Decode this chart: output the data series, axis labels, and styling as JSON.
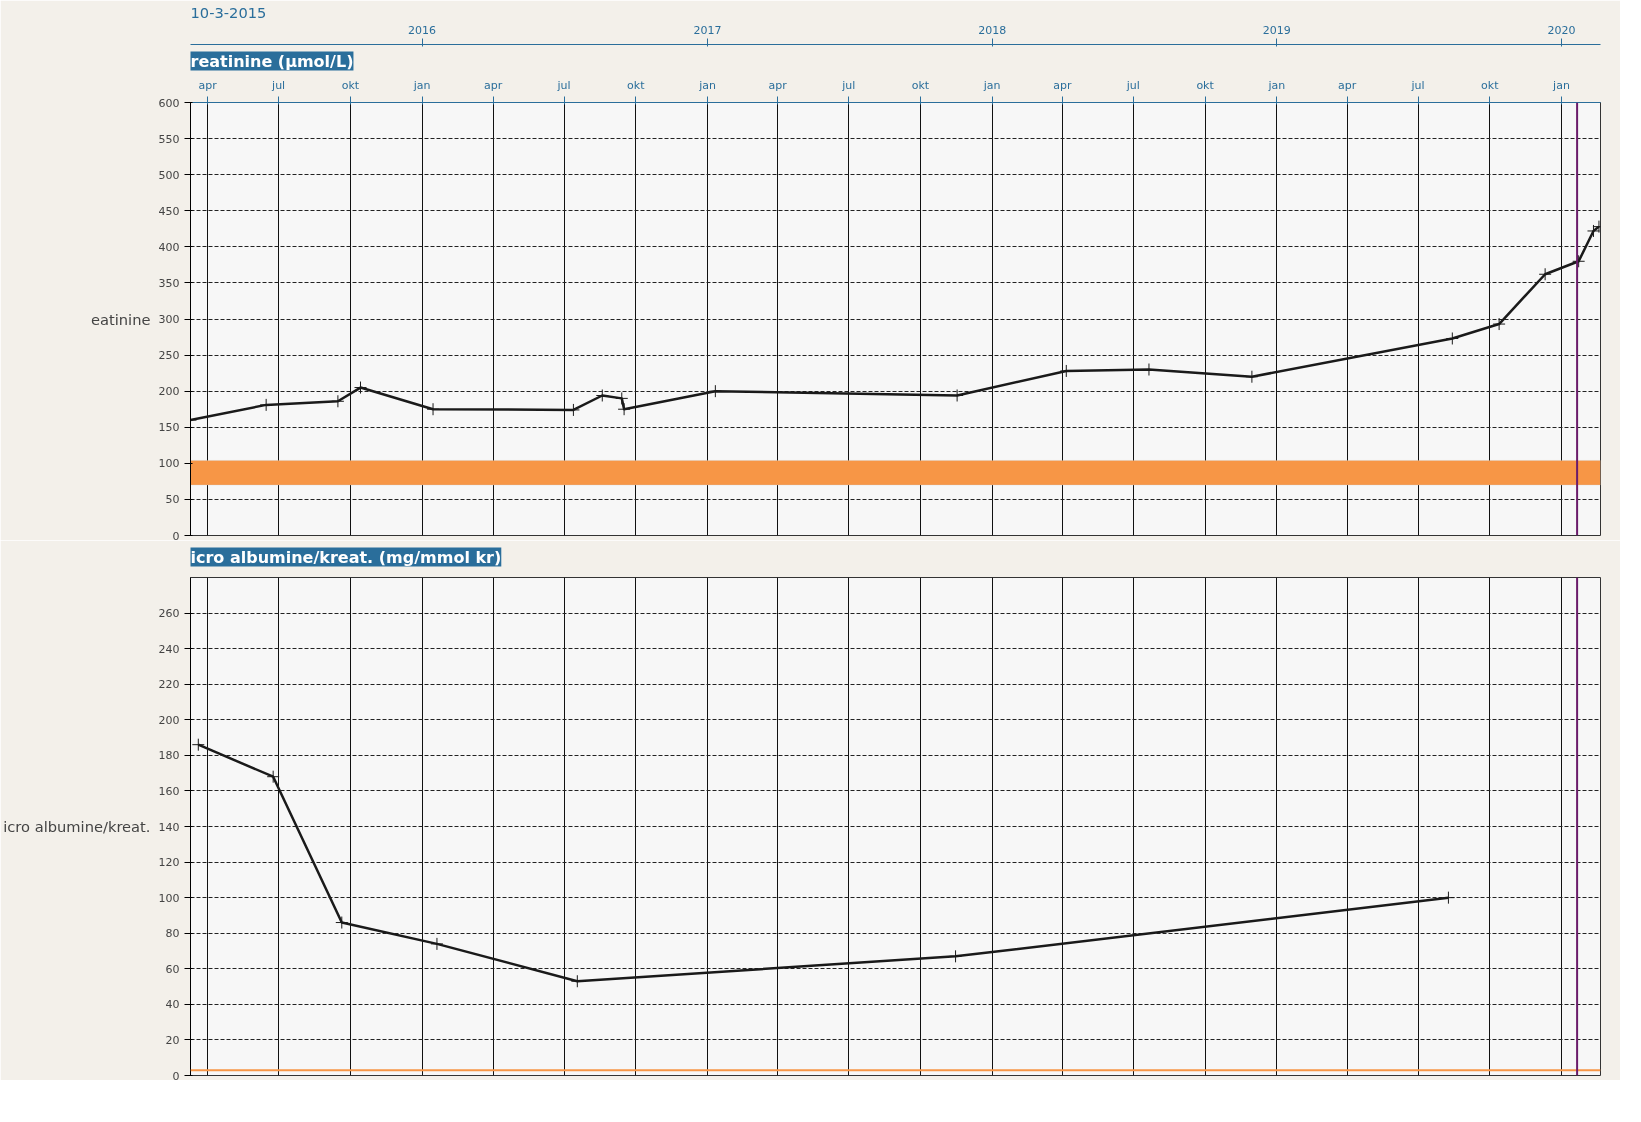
{
  "chart_data": [
    {
      "type": "line",
      "title": "reatinine (μmol/L)",
      "ylabel": "eatinine",
      "annotations": [
        "10-3-2015"
      ],
      "x": [
        "2015-03-10",
        "2015-06-15",
        "2015-09-15",
        "2015-10-14",
        "2016-01-15",
        "2016-07-13",
        "2016-08-19",
        "2016-09-13",
        "2016-09-16",
        "2017-01-11",
        "2017-11-17",
        "2018-04-06",
        "2018-07-21",
        "2018-11-30",
        "2019-08-14",
        "2019-10-13",
        "2019-12-11",
        "2020-01-23",
        "2020-02-11",
        "2020-02-18"
      ],
      "series": [
        {
          "color": "#1a1a1a",
          "values": [
            160,
            181,
            186,
            205,
            175,
            174,
            194,
            190,
            175,
            200,
            194,
            228,
            230,
            220,
            273,
            293,
            362,
            380,
            422,
            428
          ]
        }
      ],
      "xlim": [
        "2015-03-10",
        "2020-02-20"
      ],
      "ylim": [
        0,
        600
      ],
      "yticks": [
        0,
        50,
        100,
        150,
        200,
        250,
        300,
        350,
        400,
        450,
        500,
        550,
        600
      ],
      "xticks": [
        {
          "value": "2015-04-01",
          "label": "apr"
        },
        {
          "value": "2015-07-01",
          "label": "jul"
        },
        {
          "value": "2015-10-01",
          "label": "okt"
        },
        {
          "value": "2016-01-01",
          "label": "jan"
        },
        {
          "value": "2016-04-01",
          "label": "apr"
        },
        {
          "value": "2016-07-01",
          "label": "jul"
        },
        {
          "value": "2016-10-01",
          "label": "okt"
        },
        {
          "value": "2017-01-01",
          "label": "jan"
        },
        {
          "value": "2017-04-01",
          "label": "apr"
        },
        {
          "value": "2017-07-01",
          "label": "jul"
        },
        {
          "value": "2017-10-01",
          "label": "okt"
        },
        {
          "value": "2018-01-01",
          "label": "jan"
        },
        {
          "value": "2018-04-01",
          "label": "apr"
        },
        {
          "value": "2018-07-01",
          "label": "jul"
        },
        {
          "value": "2018-10-01",
          "label": "okt"
        },
        {
          "value": "2019-01-01",
          "label": "jan"
        },
        {
          "value": "2019-04-01",
          "label": "apr"
        },
        {
          "value": "2019-07-01",
          "label": "jul"
        },
        {
          "value": "2019-10-01",
          "label": "okt"
        },
        {
          "value": "2020-01-01",
          "label": "jan"
        }
      ],
      "x2lim": [
        "2015-03-10",
        "2020-02-20"
      ],
      "x2ticks": [
        {
          "value": "2016-01-01",
          "label": "2016"
        },
        {
          "value": "2017-01-01",
          "label": "2017"
        },
        {
          "value": "2018-01-01",
          "label": "2018"
        },
        {
          "value": "2019-01-01",
          "label": "2019"
        },
        {
          "value": "2020-01-01",
          "label": "2020"
        }
      ],
      "bands": [
        {
          "axis": "y",
          "from": 70,
          "to": 104,
          "color": "#f79646"
        }
      ],
      "ref_lines": [
        {
          "axis": "x",
          "value": "2020-01-21",
          "color": "#6a1b6a"
        }
      ],
      "grid": true,
      "marker": "cross",
      "line_style": "solid"
    },
    {
      "type": "line",
      "title": "icro albumine/kreat. (mg/mmol kr)",
      "ylabel": "icro albumine/kreat.",
      "x": [
        "2015-03-20",
        "2015-06-24",
        "2015-09-20",
        "2016-01-20",
        "2016-07-18",
        "2017-11-15",
        "2019-08-09"
      ],
      "series": [
        {
          "color": "#1a1a1a",
          "values": [
            186,
            168,
            86,
            74,
            53,
            67,
            100
          ]
        }
      ],
      "xlim": [
        "2015-03-10",
        "2020-02-20"
      ],
      "ylim": [
        0,
        280
      ],
      "yticks": [
        0,
        20,
        40,
        60,
        80,
        100,
        120,
        140,
        160,
        180,
        200,
        220,
        240,
        260
      ],
      "xticks": [
        {
          "value": "2015-04-01",
          "label": null
        },
        {
          "value": "2015-07-01",
          "label": null
        },
        {
          "value": "2015-10-01",
          "label": null
        },
        {
          "value": "2016-01-01",
          "label": null
        },
        {
          "value": "2016-04-01",
          "label": null
        },
        {
          "value": "2016-07-01",
          "label": null
        },
        {
          "value": "2016-10-01",
          "label": null
        },
        {
          "value": "2017-01-01",
          "label": null
        },
        {
          "value": "2017-04-01",
          "label": null
        },
        {
          "value": "2017-07-01",
          "label": null
        },
        {
          "value": "2017-10-01",
          "label": null
        },
        {
          "value": "2018-01-01",
          "label": null
        },
        {
          "value": "2018-04-01",
          "label": null
        },
        {
          "value": "2018-07-01",
          "label": null
        },
        {
          "value": "2018-10-01",
          "label": null
        },
        {
          "value": "2019-01-01",
          "label": null
        },
        {
          "value": "2019-04-01",
          "label": null
        },
        {
          "value": "2019-07-01",
          "label": null
        },
        {
          "value": "2019-10-01",
          "label": null
        },
        {
          "value": "2020-01-01",
          "label": null
        }
      ],
      "ref_lines": [
        {
          "axis": "y",
          "value": 3,
          "color": "#f79646"
        },
        {
          "axis": "x",
          "value": "2020-01-21",
          "color": "#6a1b6a"
        }
      ],
      "tick_labels": "y",
      "grid": true,
      "marker": "cross",
      "line_style": "solid"
    }
  ]
}
